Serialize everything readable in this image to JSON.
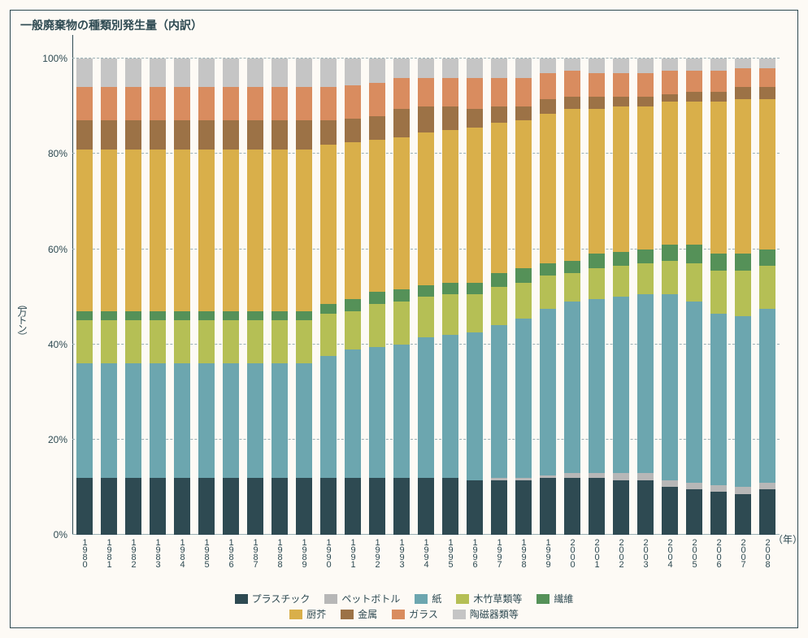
{
  "chart": {
    "title": "一般廃棄物の種類別発生量（内訳）",
    "type": "stacked-bar-percent",
    "background_color": "#fdfaf5",
    "border_color": "#2e4a52",
    "title_fontsize": 14,
    "y_axis": {
      "title": "（万トン）",
      "ticks": [
        0,
        20,
        40,
        60,
        80,
        100
      ],
      "tick_suffix": "%",
      "max": 105,
      "grid_color": "#9ab0b5",
      "label_fontsize": 12
    },
    "x_axis": {
      "title": "（年）",
      "label_fontsize": 11,
      "categories": [
        "1980",
        "1981",
        "1982",
        "1983",
        "1984",
        "1985",
        "1986",
        "1987",
        "1988",
        "1989",
        "1990",
        "1991",
        "1992",
        "1993",
        "1994",
        "1995",
        "1996",
        "1997",
        "1998",
        "1999",
        "2000",
        "2001",
        "2002",
        "2003",
        "2004",
        "2005",
        "2006",
        "2007",
        "2008"
      ]
    },
    "series": [
      {
        "key": "plastic",
        "label": "プラスチック",
        "color": "#2e4a52"
      },
      {
        "key": "pet",
        "label": "ペットボトル",
        "color": "#b7b7b7"
      },
      {
        "key": "paper",
        "label": "紙",
        "color": "#6ca6af"
      },
      {
        "key": "woodgrass",
        "label": "木竹草類等",
        "color": "#b5bf55"
      },
      {
        "key": "fiber",
        "label": "繊維",
        "color": "#559158"
      },
      {
        "key": "kitchen",
        "label": "厨芥",
        "color": "#d9af4a"
      },
      {
        "key": "metal",
        "label": "金属",
        "color": "#9c7246"
      },
      {
        "key": "glass",
        "label": "ガラス",
        "color": "#d98c5f"
      },
      {
        "key": "ceramics",
        "label": "陶磁器類等",
        "color": "#c5c5c5"
      }
    ],
    "legend_rows": [
      [
        "plastic",
        "pet",
        "paper",
        "woodgrass",
        "fiber"
      ],
      [
        "kitchen",
        "metal",
        "glass",
        "ceramics"
      ]
    ],
    "data": {
      "1980": {
        "plastic": 12.0,
        "pet": 0.0,
        "paper": 24.0,
        "woodgrass": 9.0,
        "fiber": 2.0,
        "kitchen": 34.0,
        "metal": 6.0,
        "glass": 7.0,
        "ceramics": 6.0
      },
      "1981": {
        "plastic": 12.0,
        "pet": 0.0,
        "paper": 24.0,
        "woodgrass": 9.0,
        "fiber": 2.0,
        "kitchen": 34.0,
        "metal": 6.0,
        "glass": 7.0,
        "ceramics": 6.0
      },
      "1982": {
        "plastic": 12.0,
        "pet": 0.0,
        "paper": 24.0,
        "woodgrass": 9.0,
        "fiber": 2.0,
        "kitchen": 34.0,
        "metal": 6.0,
        "glass": 7.0,
        "ceramics": 6.0
      },
      "1983": {
        "plastic": 12.0,
        "pet": 0.0,
        "paper": 24.0,
        "woodgrass": 9.0,
        "fiber": 2.0,
        "kitchen": 34.0,
        "metal": 6.0,
        "glass": 7.0,
        "ceramics": 6.0
      },
      "1984": {
        "plastic": 12.0,
        "pet": 0.0,
        "paper": 24.0,
        "woodgrass": 9.0,
        "fiber": 2.0,
        "kitchen": 34.0,
        "metal": 6.0,
        "glass": 7.0,
        "ceramics": 6.0
      },
      "1985": {
        "plastic": 12.0,
        "pet": 0.0,
        "paper": 24.0,
        "woodgrass": 9.0,
        "fiber": 2.0,
        "kitchen": 34.0,
        "metal": 6.0,
        "glass": 7.0,
        "ceramics": 6.0
      },
      "1986": {
        "plastic": 12.0,
        "pet": 0.0,
        "paper": 24.0,
        "woodgrass": 9.0,
        "fiber": 2.0,
        "kitchen": 34.0,
        "metal": 6.0,
        "glass": 7.0,
        "ceramics": 6.0
      },
      "1987": {
        "plastic": 12.0,
        "pet": 0.0,
        "paper": 24.0,
        "woodgrass": 9.0,
        "fiber": 2.0,
        "kitchen": 34.0,
        "metal": 6.0,
        "glass": 7.0,
        "ceramics": 6.0
      },
      "1988": {
        "plastic": 12.0,
        "pet": 0.0,
        "paper": 24.0,
        "woodgrass": 9.0,
        "fiber": 2.0,
        "kitchen": 34.0,
        "metal": 6.0,
        "glass": 7.0,
        "ceramics": 6.0
      },
      "1989": {
        "plastic": 12.0,
        "pet": 0.0,
        "paper": 24.0,
        "woodgrass": 9.0,
        "fiber": 2.0,
        "kitchen": 34.0,
        "metal": 6.0,
        "glass": 7.0,
        "ceramics": 6.0
      },
      "1990": {
        "plastic": 12.0,
        "pet": 0.0,
        "paper": 25.5,
        "woodgrass": 9.0,
        "fiber": 2.0,
        "kitchen": 33.5,
        "metal": 5.0,
        "glass": 7.0,
        "ceramics": 6.0
      },
      "1991": {
        "plastic": 12.0,
        "pet": 0.0,
        "paper": 27.0,
        "woodgrass": 8.0,
        "fiber": 2.5,
        "kitchen": 33.0,
        "metal": 5.0,
        "glass": 7.0,
        "ceramics": 5.5
      },
      "1992": {
        "plastic": 12.0,
        "pet": 0.0,
        "paper": 27.5,
        "woodgrass": 9.0,
        "fiber": 2.5,
        "kitchen": 32.0,
        "metal": 5.0,
        "glass": 7.0,
        "ceramics": 5.0
      },
      "1993": {
        "plastic": 12.0,
        "pet": 0.0,
        "paper": 28.0,
        "woodgrass": 9.0,
        "fiber": 2.5,
        "kitchen": 32.0,
        "metal": 6.0,
        "glass": 6.5,
        "ceramics": 4.0
      },
      "1994": {
        "plastic": 12.0,
        "pet": 0.0,
        "paper": 29.5,
        "woodgrass": 8.5,
        "fiber": 2.5,
        "kitchen": 32.0,
        "metal": 5.5,
        "glass": 6.0,
        "ceramics": 4.0
      },
      "1995": {
        "plastic": 12.0,
        "pet": 0.0,
        "paper": 30.0,
        "woodgrass": 8.5,
        "fiber": 2.5,
        "kitchen": 32.0,
        "metal": 5.0,
        "glass": 6.0,
        "ceramics": 4.0
      },
      "1996": {
        "plastic": 11.5,
        "pet": 0.0,
        "paper": 31.0,
        "woodgrass": 8.0,
        "fiber": 2.5,
        "kitchen": 32.5,
        "metal": 4.0,
        "glass": 6.5,
        "ceramics": 4.0
      },
      "1997": {
        "plastic": 11.5,
        "pet": 0.5,
        "paper": 32.0,
        "woodgrass": 8.0,
        "fiber": 3.0,
        "kitchen": 31.5,
        "metal": 3.5,
        "glass": 6.0,
        "ceramics": 4.0
      },
      "1998": {
        "plastic": 11.5,
        "pet": 0.5,
        "paper": 33.5,
        "woodgrass": 7.5,
        "fiber": 3.0,
        "kitchen": 31.0,
        "metal": 3.0,
        "glass": 6.0,
        "ceramics": 4.0
      },
      "1999": {
        "plastic": 12.0,
        "pet": 0.5,
        "paper": 35.0,
        "woodgrass": 7.0,
        "fiber": 2.5,
        "kitchen": 31.5,
        "metal": 3.0,
        "glass": 5.5,
        "ceramics": 3.0
      },
      "2000": {
        "plastic": 12.0,
        "pet": 1.0,
        "paper": 36.0,
        "woodgrass": 6.0,
        "fiber": 2.5,
        "kitchen": 32.0,
        "metal": 2.5,
        "glass": 5.5,
        "ceramics": 2.5
      },
      "2001": {
        "plastic": 12.0,
        "pet": 1.0,
        "paper": 36.5,
        "woodgrass": 6.5,
        "fiber": 3.0,
        "kitchen": 30.5,
        "metal": 2.5,
        "glass": 5.0,
        "ceramics": 3.0
      },
      "2002": {
        "plastic": 11.5,
        "pet": 1.5,
        "paper": 37.0,
        "woodgrass": 6.5,
        "fiber": 3.0,
        "kitchen": 30.5,
        "metal": 2.0,
        "glass": 5.0,
        "ceramics": 3.0
      },
      "2003": {
        "plastic": 11.5,
        "pet": 1.5,
        "paper": 37.5,
        "woodgrass": 6.5,
        "fiber": 3.0,
        "kitchen": 30.0,
        "metal": 2.0,
        "glass": 5.0,
        "ceramics": 3.0
      },
      "2004": {
        "plastic": 10.0,
        "pet": 1.5,
        "paper": 39.0,
        "woodgrass": 7.0,
        "fiber": 3.5,
        "kitchen": 30.0,
        "metal": 1.5,
        "glass": 5.0,
        "ceramics": 2.5
      },
      "2005": {
        "plastic": 9.5,
        "pet": 1.5,
        "paper": 38.0,
        "woodgrass": 8.0,
        "fiber": 4.0,
        "kitchen": 30.0,
        "metal": 2.0,
        "glass": 4.5,
        "ceramics": 2.5
      },
      "2006": {
        "plastic": 9.0,
        "pet": 1.5,
        "paper": 36.0,
        "woodgrass": 9.0,
        "fiber": 3.5,
        "kitchen": 32.0,
        "metal": 2.0,
        "glass": 4.5,
        "ceramics": 2.5
      },
      "2007": {
        "plastic": 8.5,
        "pet": 1.5,
        "paper": 36.0,
        "woodgrass": 9.5,
        "fiber": 3.5,
        "kitchen": 32.5,
        "metal": 2.5,
        "glass": 4.0,
        "ceramics": 2.0
      },
      "2008": {
        "plastic": 9.5,
        "pet": 1.5,
        "paper": 36.5,
        "woodgrass": 9.0,
        "fiber": 3.5,
        "kitchen": 31.5,
        "metal": 2.5,
        "glass": 4.0,
        "ceramics": 2.0
      }
    }
  }
}
